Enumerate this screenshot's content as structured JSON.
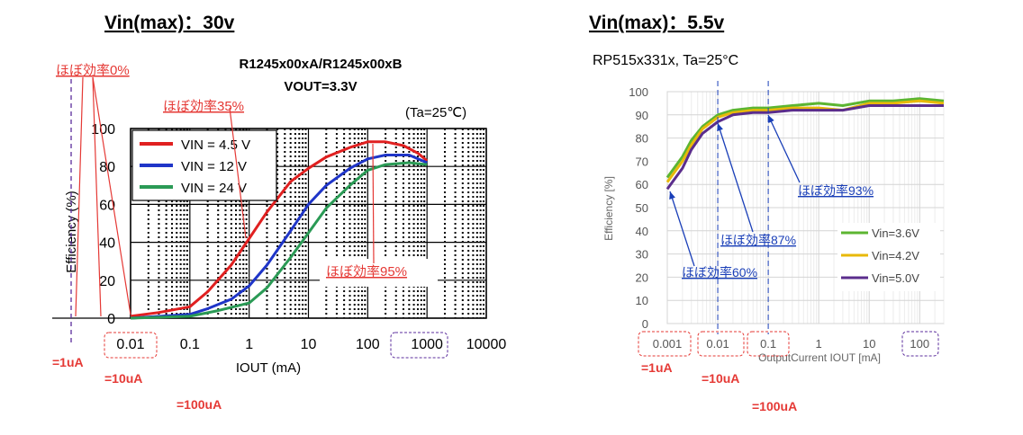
{
  "left_heading": "Vin(max)：30v",
  "right_heading": "Vin(max)：5.5v",
  "annotation_colors": {
    "red": "#e53935",
    "blue": "#1a3fb8",
    "purple": "#5b2d9c"
  },
  "chart_data": [
    {
      "type": "line",
      "title": "R1245x00xA/R1245x00xB",
      "subtitle": "VOUT=3.3V",
      "condition": "(Ta=25℃)",
      "xlabel": "IOUT (mA)",
      "ylabel": "Efficiency (%)",
      "xscale": "log",
      "xlim": [
        0.01,
        10000
      ],
      "ylim": [
        0,
        100
      ],
      "x_ticks": [
        "0.01",
        "0.1",
        "1",
        "10",
        "100",
        "1000",
        "10000"
      ],
      "y_ticks": [
        "0",
        "20",
        "40",
        "60",
        "80",
        "100"
      ],
      "grid": true,
      "legend_position": "top-left",
      "series": [
        {
          "name": "VIN =  4.5 V",
          "color": "#e02020",
          "x": [
            0.01,
            0.03,
            0.1,
            0.2,
            0.5,
            1,
            2,
            5,
            10,
            20,
            50,
            100,
            200,
            400,
            700,
            1000
          ],
          "y": [
            1,
            3,
            6,
            14,
            28,
            42,
            56,
            72,
            79,
            85,
            90,
            93,
            93,
            91,
            87,
            83
          ]
        },
        {
          "name": "VIN =  12 V",
          "color": "#1f35c8",
          "x": [
            0.01,
            0.1,
            0.2,
            0.5,
            1,
            2,
            5,
            10,
            20,
            50,
            100,
            200,
            500,
            1000
          ],
          "y": [
            0,
            2,
            5,
            10,
            17,
            28,
            46,
            60,
            70,
            79,
            84,
            86,
            86,
            82
          ]
        },
        {
          "name": "VIN =  24 V",
          "color": "#2a9a55",
          "x": [
            0.01,
            0.1,
            0.3,
            1,
            2,
            5,
            10,
            20,
            50,
            100,
            200,
            500,
            1000
          ],
          "y": [
            0,
            1,
            4,
            8,
            16,
            32,
            45,
            58,
            70,
            78,
            81,
            82,
            81
          ]
        }
      ],
      "callouts": [
        "ほぼ効率0%",
        "ほぼ効率35%",
        "ほぼ効率95%"
      ],
      "current_labels": [
        "=1uA",
        "=10uA",
        "=100uA"
      ]
    },
    {
      "type": "line",
      "title": "RP515x331x, Ta=25°C",
      "xlabel": "OutputCurrent  IOUT [mA]",
      "ylabel": "Efficiency [%]",
      "xscale": "log",
      "xlim": [
        0.001,
        300
      ],
      "ylim": [
        0,
        100
      ],
      "x_ticks": [
        "0.001",
        "0.01",
        "0.1",
        "1",
        "10",
        "100"
      ],
      "y_ticks": [
        "0",
        "10",
        "20",
        "30",
        "40",
        "50",
        "60",
        "70",
        "80",
        "90",
        "100"
      ],
      "grid": true,
      "legend_position": "bottom-right",
      "series": [
        {
          "name": "Vin=3.6V",
          "color": "#5cb531",
          "x": [
            0.001,
            0.002,
            0.003,
            0.005,
            0.01,
            0.02,
            0.05,
            0.1,
            0.3,
            1,
            3,
            10,
            30,
            100,
            300
          ],
          "y": [
            63,
            72,
            79,
            85,
            90,
            92,
            93,
            93,
            94,
            95,
            94,
            96,
            96,
            97,
            96
          ]
        },
        {
          "name": "Vin=4.2V",
          "color": "#e8b90a",
          "x": [
            0.001,
            0.002,
            0.003,
            0.005,
            0.01,
            0.02,
            0.05,
            0.1,
            0.3,
            1,
            3,
            10,
            30,
            100,
            300
          ],
          "y": [
            61,
            70,
            77,
            84,
            89,
            91,
            92,
            92,
            93,
            93,
            92,
            95,
            95,
            96,
            95
          ]
        },
        {
          "name": "Vin=5.0V",
          "color": "#5b2d8c",
          "x": [
            0.001,
            0.002,
            0.003,
            0.005,
            0.01,
            0.02,
            0.05,
            0.1,
            0.3,
            1,
            3,
            10,
            30,
            100,
            300
          ],
          "y": [
            58,
            67,
            75,
            82,
            87,
            90,
            91,
            91,
            92,
            92,
            92,
            94,
            94,
            94,
            94
          ]
        }
      ],
      "callouts": [
        "ほぼ効率93%",
        "ほぼ効率87%",
        "ほぼ効率60%"
      ],
      "current_labels": [
        "=1uA",
        "=10uA",
        "=100uA"
      ]
    }
  ]
}
